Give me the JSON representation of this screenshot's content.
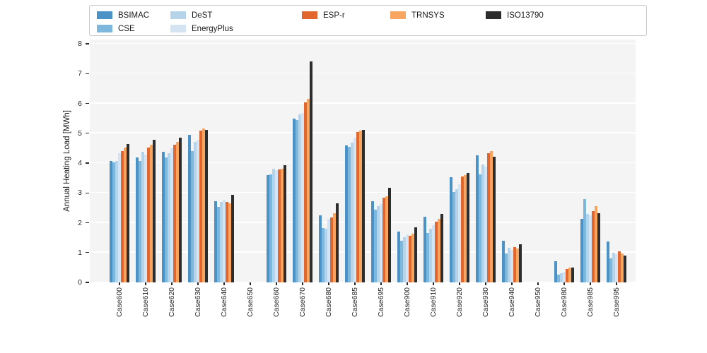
{
  "figure": {
    "background": "#ffffff",
    "plot_background": "#f4f4f4",
    "gridline_color": "#ffffff",
    "tick_color": "#262626"
  },
  "chart_data": {
    "type": "bar",
    "title": "",
    "xlabel": "",
    "ylabel": "Annual Heating Load [MWh]",
    "ylim": [
      0,
      8
    ],
    "yticks": [
      0,
      1,
      2,
      3,
      4,
      5,
      6,
      7,
      8
    ],
    "grid": true,
    "legend_position": "top",
    "categories": [
      "Case600",
      "Case610",
      "Case620",
      "Case630",
      "Case640",
      "Case650",
      "Case660",
      "Case670",
      "Case680",
      "Case685",
      "Case695",
      "Case900",
      "Case910",
      "Case920",
      "Case930",
      "Case940",
      "Case950",
      "Case980",
      "Case985",
      "Case995"
    ],
    "series": [
      {
        "name": "BSIMAC",
        "color": "#4b92c6",
        "values": [
          4.08,
          4.19,
          4.39,
          4.94,
          2.73,
          0,
          3.6,
          5.49,
          2.25,
          4.59,
          2.73,
          1.71,
          2.21,
          3.52,
          4.26,
          1.39,
          0,
          0.72,
          2.12,
          1.37
        ]
      },
      {
        "name": "CSE",
        "color": "#7db8dc",
        "values": [
          4.02,
          4.08,
          4.18,
          4.4,
          2.54,
          0,
          3.63,
          5.44,
          1.83,
          4.55,
          2.45,
          1.4,
          1.65,
          3.02,
          3.63,
          0.98,
          0,
          0.25,
          2.8,
          0.8
        ]
      },
      {
        "name": "DeST",
        "color": "#b5d3e9",
        "values": [
          4.06,
          4.39,
          4.32,
          4.7,
          2.7,
          0,
          3.82,
          5.63,
          1.79,
          4.69,
          2.55,
          1.52,
          1.8,
          3.13,
          3.96,
          1.17,
          0,
          0.3,
          2.3,
          1.0
        ]
      },
      {
        "name": "EnergyPlus",
        "color": "#d4e4f3",
        "values": [
          4.34,
          4.28,
          4.49,
          4.79,
          2.76,
          0,
          3.76,
          5.69,
          2.13,
          4.86,
          2.62,
          1.6,
          1.92,
          3.28,
          3.89,
          1.09,
          0,
          0.35,
          2.25,
          0.95
        ]
      },
      {
        "name": "ESP-r",
        "color": "#e2672f",
        "values": [
          4.4,
          4.53,
          4.61,
          5.1,
          2.7,
          0,
          3.79,
          6.04,
          2.18,
          5.05,
          2.83,
          1.56,
          2.04,
          3.55,
          4.33,
          1.19,
          0,
          0.45,
          2.4,
          1.05
        ]
      },
      {
        "name": "TRNSYS",
        "color": "#f8a55f",
        "values": [
          4.53,
          4.62,
          4.7,
          5.15,
          2.64,
          0,
          3.81,
          6.15,
          2.31,
          5.08,
          2.88,
          1.63,
          2.12,
          3.6,
          4.4,
          1.13,
          0,
          0.5,
          2.55,
          0.98
        ]
      },
      {
        "name": "ISO13790",
        "color": "#2d2d2d",
        "values": [
          4.65,
          4.78,
          4.85,
          5.12,
          2.93,
          0,
          3.92,
          7.42,
          2.64,
          5.12,
          3.18,
          1.85,
          2.3,
          3.67,
          4.21,
          1.29,
          0,
          0.5,
          2.33,
          0.9
        ]
      }
    ]
  }
}
